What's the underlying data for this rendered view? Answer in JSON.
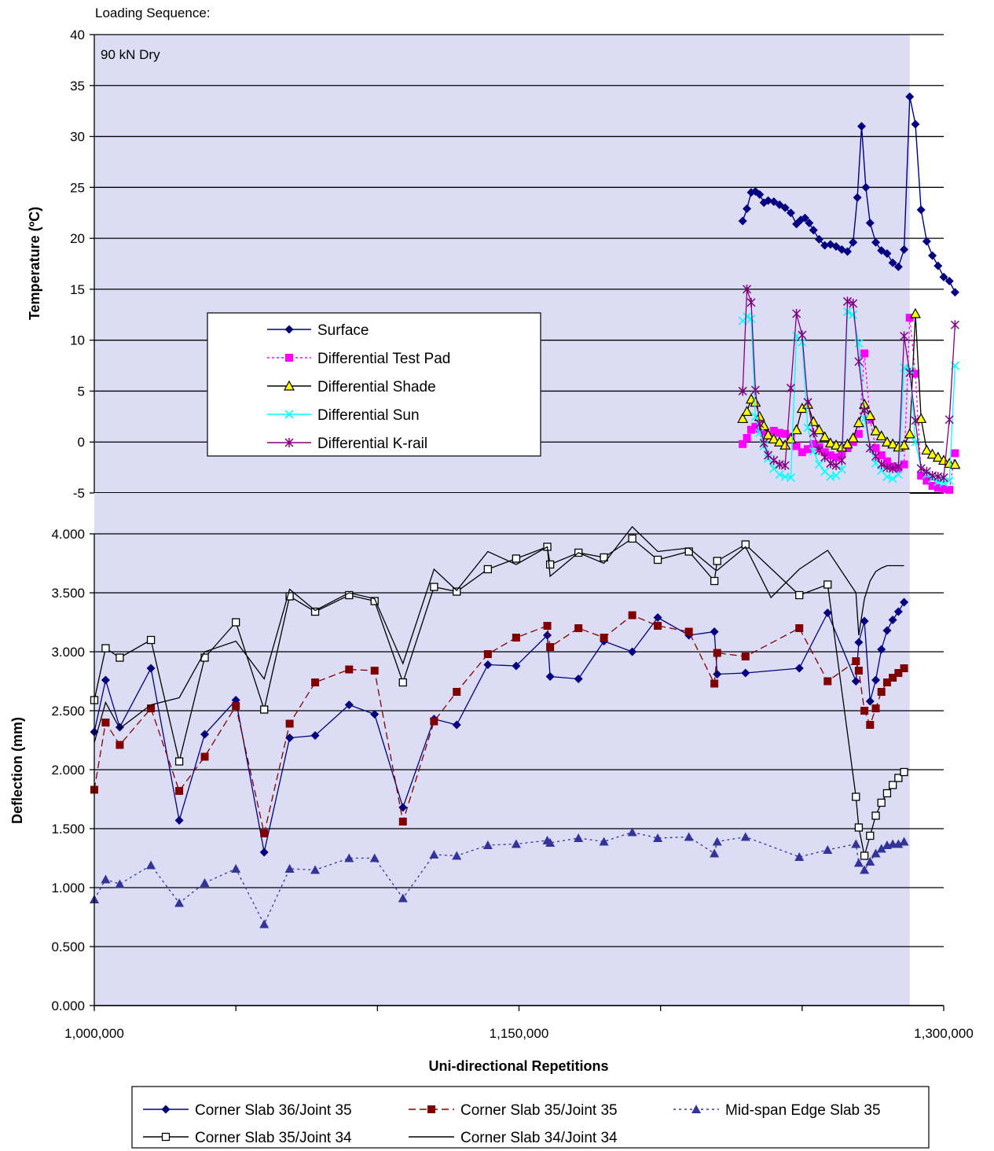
{
  "chart_data": [
    {
      "type": "line",
      "caption": "Loading Sequence:",
      "annotation": "90 kN Dry",
      "ylabel": "Temperature (ºC)",
      "ylim": [
        -5,
        40
      ],
      "yticks": [
        -5,
        0,
        5,
        10,
        15,
        20,
        25,
        30,
        35,
        40
      ],
      "xlim": [
        1000000,
        1300000
      ],
      "shaded_until": 1288000,
      "grid": "horizontal",
      "legend_position": "center-left",
      "colors": {
        "background": "#dcdcf5",
        "surface": "#000080",
        "test_pad": "#ff00ff",
        "shade": "#000000",
        "shade_fill": "#ffff00",
        "sun": "#00ffff",
        "krail": "#800080"
      },
      "series": [
        {
          "name": "Surface",
          "x": [
            1229000,
            1230500,
            1232000,
            1233500,
            1235000,
            1236500,
            1238000,
            1240000,
            1242000,
            1244000,
            1246000,
            1248000,
            1249500,
            1251000,
            1252500,
            1254000,
            1256000,
            1258000,
            1260000,
            1262000,
            1264000,
            1266000,
            1268000,
            1269500,
            1271000,
            1272500,
            1274000,
            1276000,
            1278000,
            1280000,
            1282000,
            1284000,
            1286000,
            1288000,
            1290000,
            1292000,
            1294000,
            1296000,
            1298000,
            1300000,
            1302000,
            1304000
          ],
          "y": [
            21.7,
            22.9,
            24.5,
            24.6,
            24.3,
            23.5,
            23.7,
            23.6,
            23.3,
            23,
            22.5,
            21.4,
            21.8,
            22,
            21.5,
            20.8,
            19.9,
            19.3,
            19.4,
            19.2,
            18.9,
            18.7,
            19.6,
            24,
            31,
            25,
            21.5,
            19.6,
            18.8,
            18.5,
            17.6,
            17.2,
            18.9,
            33.9,
            31.2,
            22.8,
            19.7,
            18.3,
            17.3,
            16.2,
            15.8,
            14.7
          ]
        },
        {
          "name": "Differential Test Pad",
          "x": [
            1229000,
            1230500,
            1232000,
            1233500,
            1235000,
            1236500,
            1238000,
            1240000,
            1242000,
            1244000,
            1246000,
            1248000,
            1250000,
            1252000,
            1254000,
            1256000,
            1258000,
            1260000,
            1262000,
            1264000,
            1266000,
            1268000,
            1270000,
            1272000,
            1274000,
            1276000,
            1278000,
            1280000,
            1282000,
            1284000,
            1286000,
            1288000,
            1290000,
            1292000,
            1294000,
            1296000,
            1298000,
            1300000,
            1302000,
            1304000
          ],
          "y": [
            -0.2,
            0.4,
            1.2,
            1.5,
            1.3,
            0.9,
            0.7,
            1.1,
            0.9,
            0.8,
            0.5,
            -0.4,
            -1,
            -0.7,
            -0.2,
            -0.5,
            -1,
            -1.3,
            -1.5,
            -1.2,
            -0.6,
            0,
            0.8,
            8.7,
            2.2,
            -0.6,
            -1.3,
            -1.9,
            -2.4,
            -2.6,
            -2.2,
            12.2,
            6.7,
            -3.3,
            -3.8,
            -4.3,
            -4.5,
            -4.6,
            -4.7,
            -1.1
          ]
        },
        {
          "name": "Differential Shade",
          "x": [
            1229000,
            1230500,
            1232000,
            1233500,
            1235000,
            1236500,
            1238000,
            1240000,
            1242000,
            1244000,
            1246000,
            1248000,
            1250000,
            1252000,
            1254000,
            1256000,
            1258000,
            1260000,
            1262000,
            1264000,
            1266000,
            1268000,
            1270000,
            1272000,
            1274000,
            1276000,
            1278000,
            1280000,
            1282000,
            1284000,
            1286000,
            1288000,
            1290000,
            1292000,
            1294000,
            1296000,
            1298000,
            1300000,
            1302000,
            1304000
          ],
          "y": [
            2.3,
            3,
            4.2,
            3.9,
            2.5,
            1.6,
            0.7,
            0.3,
            0,
            -0.3,
            0.3,
            1.2,
            3.3,
            3.7,
            2,
            1.2,
            0.5,
            -0.1,
            -0.3,
            -0.5,
            -0.2,
            0.4,
            1.9,
            3.7,
            2.6,
            1.1,
            0.6,
            0,
            -0.2,
            -0.5,
            -0.3,
            0.8,
            12.6,
            2.3,
            -0.8,
            -1.2,
            -1.5,
            -1.8,
            -2.1,
            -2.2
          ]
        },
        {
          "name": "Differential Sun",
          "x": [
            1229000,
            1230500,
            1232000,
            1233500,
            1235000,
            1236500,
            1238000,
            1240000,
            1242000,
            1244000,
            1246000,
            1248000,
            1250000,
            1252000,
            1254000,
            1256000,
            1258000,
            1260000,
            1262000,
            1264000,
            1266000,
            1268000,
            1270000,
            1272000,
            1274000,
            1276000,
            1278000,
            1280000,
            1282000,
            1284000,
            1286000,
            1288000,
            1290000,
            1292000,
            1294000,
            1296000,
            1298000,
            1300000,
            1302000,
            1304000
          ],
          "y": [
            11.9,
            12.3,
            12.1,
            2.5,
            0.9,
            -0.4,
            -1.6,
            -2.6,
            -3.2,
            -3.4,
            -3.5,
            10.4,
            9.8,
            1.4,
            -0.9,
            -2.2,
            -2.9,
            -3.4,
            -3.3,
            -2.7,
            12.8,
            12.5,
            9.7,
            2.3,
            -0.6,
            -2.1,
            -2.8,
            -3.4,
            -3.6,
            -3.2,
            7.3,
            7.1,
            0,
            -2.6,
            -3.2,
            -3.6,
            -3.9,
            -4,
            -3.8,
            7.5
          ]
        },
        {
          "name": "Differential K-rail",
          "x": [
            1229000,
            1230500,
            1232000,
            1233500,
            1235000,
            1236500,
            1238000,
            1240000,
            1242000,
            1244000,
            1246000,
            1248000,
            1250000,
            1252000,
            1254000,
            1256000,
            1258000,
            1260000,
            1262000,
            1264000,
            1266000,
            1268000,
            1270000,
            1272000,
            1274000,
            1276000,
            1278000,
            1280000,
            1282000,
            1284000,
            1286000,
            1288000,
            1290000,
            1292000,
            1294000,
            1296000,
            1298000,
            1300000,
            1302000,
            1304000
          ],
          "y": [
            5,
            15,
            13.7,
            5.1,
            1.8,
            -0.1,
            -1.3,
            -1.8,
            -2.2,
            -2.3,
            5.3,
            12.6,
            10.5,
            3.9,
            0.9,
            -0.8,
            -1.5,
            -2.1,
            -2.3,
            -1.8,
            13.8,
            13.6,
            7.9,
            3.1,
            -0.6,
            -1.4,
            -2.2,
            -2.5,
            -2.6,
            -2.4,
            10.4,
            6.8,
            2.1,
            -2.6,
            -2.9,
            -3.3,
            -3.4,
            -3.5,
            2.2,
            11.5
          ]
        }
      ]
    },
    {
      "type": "line",
      "xlabel": "Uni-directional Repetitions",
      "ylabel": "Deflection (mm)",
      "xlim": [
        1000000,
        1300000
      ],
      "xticks": [
        1000000,
        1150000,
        1300000
      ],
      "xtick_labels": [
        "1,000,000",
        "1,150,000",
        "1,300,000"
      ],
      "ylim": [
        0,
        4
      ],
      "yticks": [
        0,
        0.5,
        1,
        1.5,
        2,
        2.5,
        3,
        3.5,
        4
      ],
      "ytick_labels": [
        "0.000",
        "0.500",
        "1.000",
        "1.500",
        "2.000",
        "2.500",
        "3.000",
        "3.500",
        "4.000"
      ],
      "grid": "horizontal",
      "legend_position": "bottom",
      "colors": {
        "slab36": "#000080",
        "slab35": "#800000",
        "midspan": "#333399",
        "slab35j34": "#000000",
        "slab34": "#000000"
      },
      "series": [
        {
          "name": "Corner Slab 36/Joint 35",
          "x": [
            1000000,
            1004000,
            1009000,
            1020000,
            1030000,
            1039000,
            1050000,
            1060000,
            1069000,
            1078000,
            1090000,
            1099000,
            1109000,
            1120000,
            1128000,
            1139000,
            1149000,
            1160000,
            1161000,
            1171000,
            1180000,
            1190000,
            1199000,
            1210000,
            1219000,
            1220000,
            1230000,
            1249000,
            1259000,
            1269000,
            1270000,
            1272000,
            1274000,
            1276000,
            1278000,
            1280000,
            1282000,
            1284000,
            1286000
          ],
          "y": [
            2.32,
            2.76,
            2.36,
            2.86,
            1.57,
            2.3,
            2.59,
            1.3,
            2.27,
            2.29,
            2.55,
            2.47,
            1.68,
            2.43,
            2.38,
            2.89,
            2.88,
            3.14,
            2.79,
            2.77,
            3.09,
            3,
            3.29,
            3.14,
            3.17,
            2.81,
            2.82,
            2.86,
            3.33,
            2.75,
            3.08,
            3.26,
            2.58,
            2.76,
            3.02,
            3.18,
            3.27,
            3.34,
            3.42
          ]
        },
        {
          "name": "Corner Slab 35/Joint 35",
          "x": [
            1000000,
            1004000,
            1009000,
            1020000,
            1030000,
            1039000,
            1050000,
            1060000,
            1069000,
            1078000,
            1090000,
            1099000,
            1109000,
            1120000,
            1128000,
            1139000,
            1149000,
            1160000,
            1161000,
            1171000,
            1180000,
            1190000,
            1199000,
            1210000,
            1219000,
            1220000,
            1230000,
            1249000,
            1259000,
            1269000,
            1270000,
            1272000,
            1274000,
            1276000,
            1278000,
            1280000,
            1282000,
            1284000,
            1286000
          ],
          "y": [
            1.83,
            2.4,
            2.21,
            2.52,
            1.82,
            2.11,
            2.54,
            1.46,
            2.39,
            2.74,
            2.85,
            2.84,
            1.56,
            2.41,
            2.66,
            2.98,
            3.12,
            3.22,
            3.04,
            3.2,
            3.12,
            3.31,
            3.22,
            3.17,
            2.73,
            2.99,
            2.96,
            3.2,
            2.75,
            2.92,
            2.84,
            2.5,
            2.38,
            2.52,
            2.66,
            2.74,
            2.78,
            2.82,
            2.86
          ]
        },
        {
          "name": "Mid-span Edge Slab 35",
          "x": [
            1000000,
            1004000,
            1009000,
            1020000,
            1030000,
            1039000,
            1050000,
            1060000,
            1069000,
            1078000,
            1090000,
            1099000,
            1109000,
            1120000,
            1128000,
            1139000,
            1149000,
            1160000,
            1161000,
            1171000,
            1180000,
            1190000,
            1199000,
            1210000,
            1219000,
            1220000,
            1230000,
            1249000,
            1259000,
            1269000,
            1270000,
            1272000,
            1274000,
            1276000,
            1278000,
            1280000,
            1282000,
            1284000,
            1286000
          ],
          "y": [
            0.9,
            1.07,
            1.03,
            1.19,
            0.87,
            1.04,
            1.16,
            0.69,
            1.16,
            1.15,
            1.25,
            1.25,
            0.91,
            1.28,
            1.27,
            1.36,
            1.37,
            1.4,
            1.38,
            1.42,
            1.39,
            1.47,
            1.42,
            1.43,
            1.29,
            1.39,
            1.43,
            1.26,
            1.32,
            1.37,
            1.21,
            1.15,
            1.22,
            1.29,
            1.33,
            1.36,
            1.37,
            1.37,
            1.39
          ]
        },
        {
          "name": "Corner Slab 35/Joint 34",
          "x": [
            1000000,
            1004000,
            1009000,
            1020000,
            1030000,
            1039000,
            1050000,
            1060000,
            1069000,
            1078000,
            1090000,
            1099000,
            1109000,
            1120000,
            1128000,
            1139000,
            1149000,
            1160000,
            1161000,
            1171000,
            1180000,
            1190000,
            1199000,
            1210000,
            1219000,
            1220000,
            1230000,
            1249000,
            1259000,
            1269000,
            1270000,
            1272000,
            1274000,
            1276000,
            1278000,
            1280000,
            1282000,
            1284000,
            1286000
          ],
          "y": [
            2.59,
            3.03,
            2.95,
            3.1,
            2.07,
            2.95,
            3.25,
            2.51,
            3.47,
            3.34,
            3.48,
            3.43,
            2.74,
            3.55,
            3.51,
            3.7,
            3.79,
            3.89,
            3.74,
            3.84,
            3.8,
            3.96,
            3.78,
            3.85,
            3.6,
            3.77,
            3.91,
            3.48,
            3.57,
            1.77,
            1.51,
            1.27,
            1.44,
            1.61,
            1.72,
            1.8,
            1.87,
            1.93,
            1.98
          ]
        },
        {
          "name": "Corner Slab 34/Joint 34",
          "x": [
            1000000,
            1004000,
            1009000,
            1020000,
            1030000,
            1039000,
            1050000,
            1060000,
            1069000,
            1078000,
            1090000,
            1099000,
            1109000,
            1120000,
            1128000,
            1139000,
            1149000,
            1160000,
            1161000,
            1171000,
            1180000,
            1190000,
            1199000,
            1210000,
            1219000,
            1220000,
            1230000,
            1239000,
            1249000,
            1259000,
            1269000,
            1270000,
            1272000,
            1274000,
            1276000,
            1278000,
            1280000,
            1282000,
            1286000
          ],
          "y": [
            2.23,
            2.57,
            2.35,
            2.55,
            2.61,
            3,
            3.09,
            2.77,
            3.53,
            3.35,
            3.5,
            3.45,
            2.9,
            3.7,
            3.52,
            3.85,
            3.74,
            3.89,
            3.64,
            3.84,
            3.75,
            4.06,
            3.85,
            3.88,
            3.7,
            3.69,
            3.89,
            3.46,
            3.7,
            3.86,
            3.5,
            3.14,
            3.45,
            3.6,
            3.68,
            3.71,
            3.73,
            3.73,
            3.73
          ]
        }
      ]
    }
  ]
}
